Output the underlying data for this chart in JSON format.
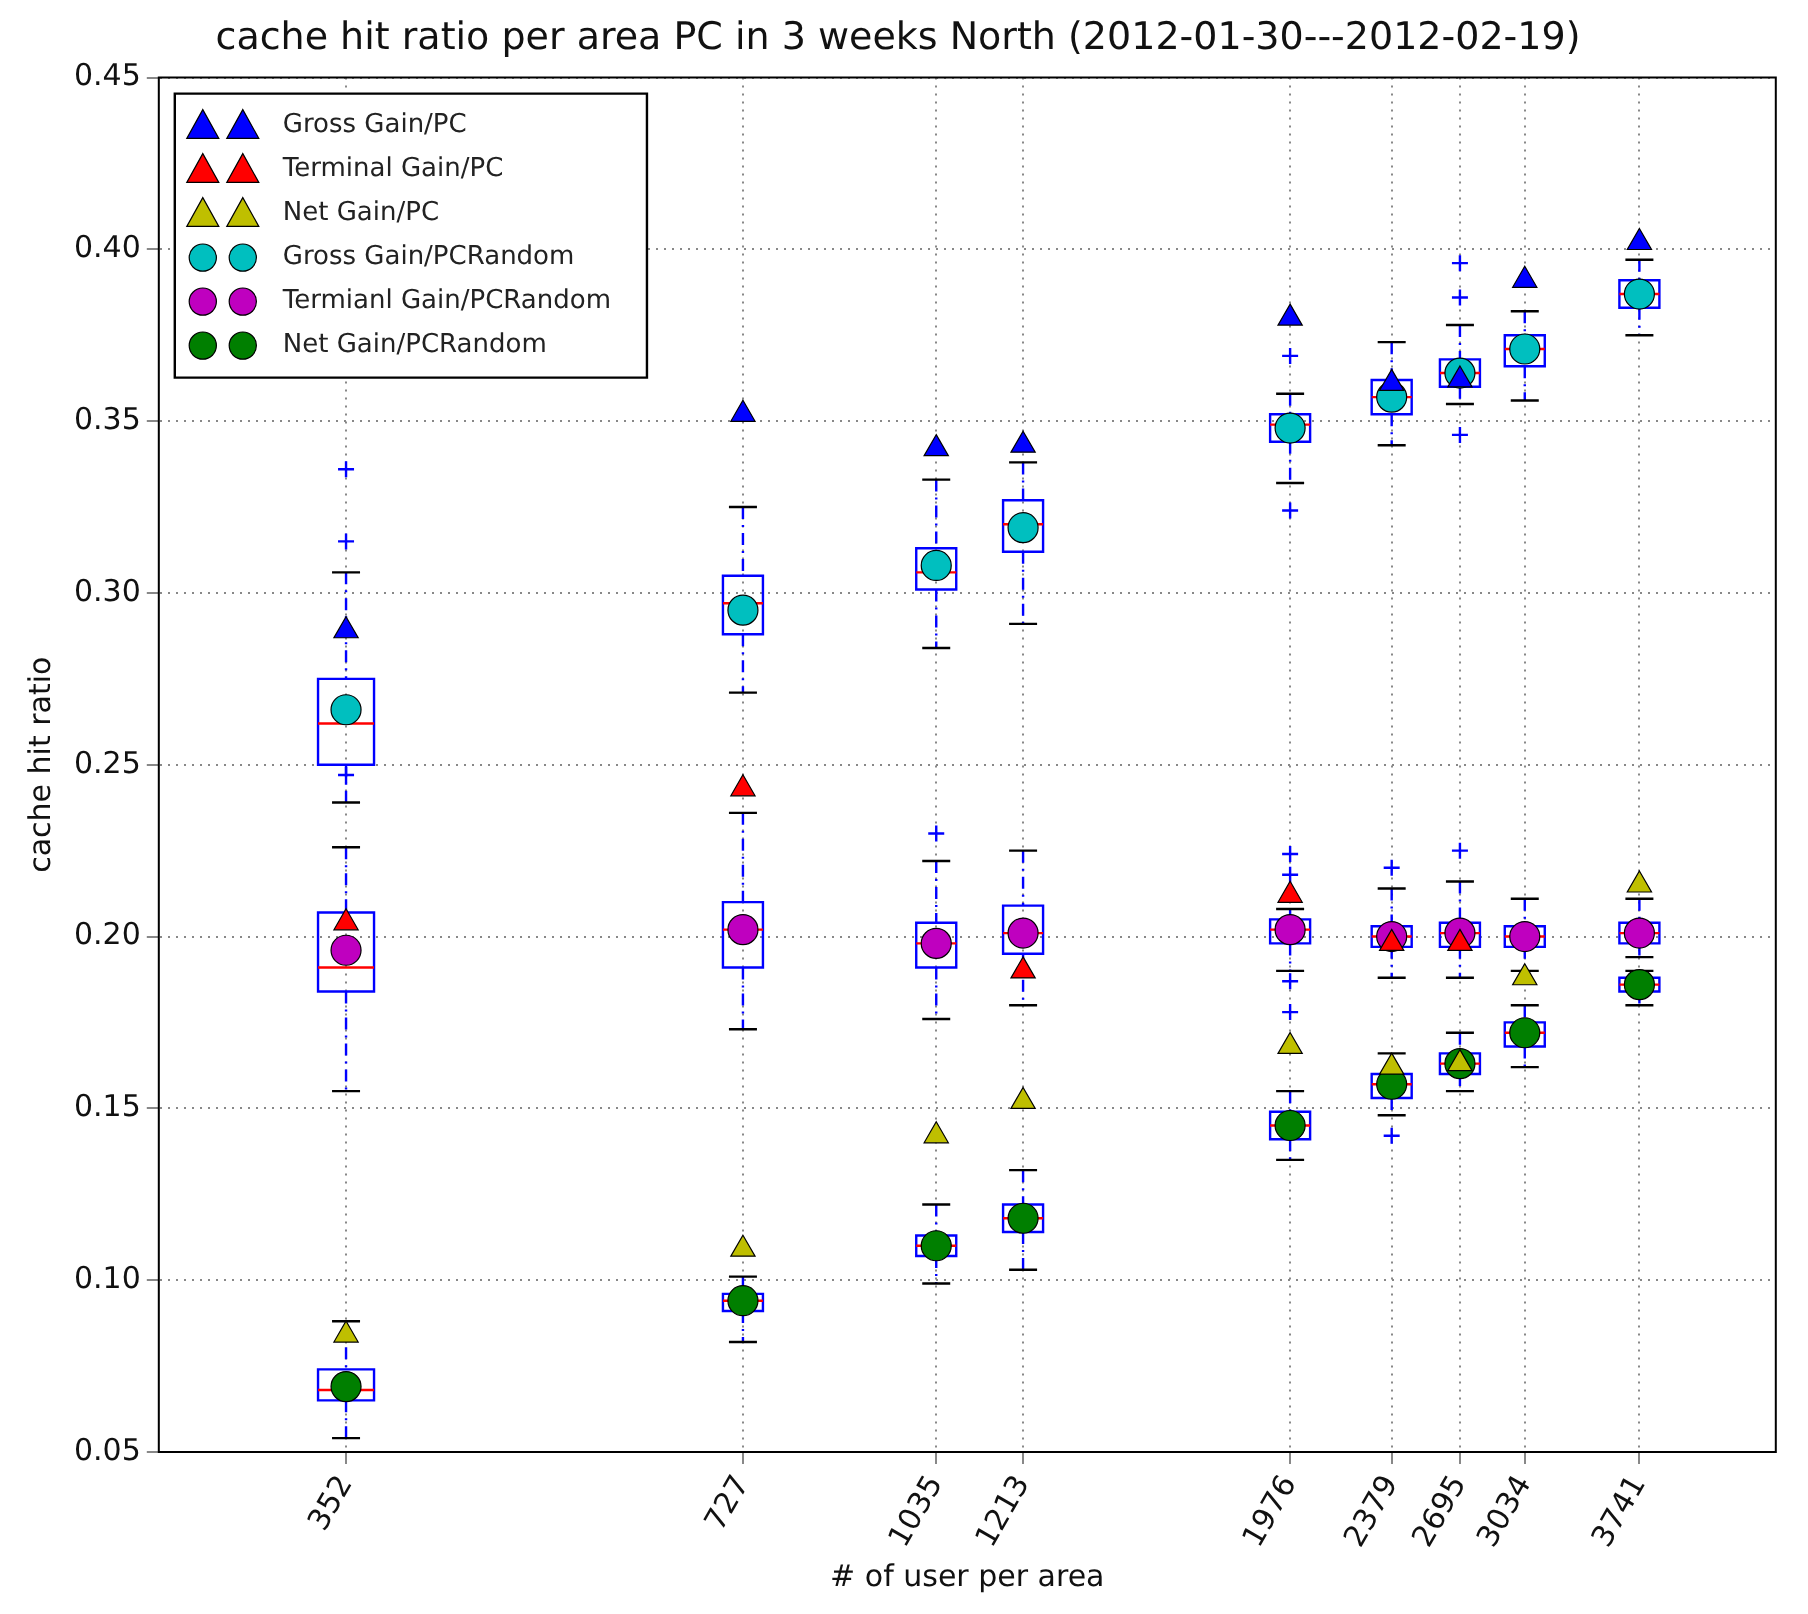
{
  "chart_data": {
    "type": "scatter",
    "title": "cache hit ratio per area PC in 3 weeks North (2012-01-30---2012-02-19)",
    "xlabel": "# of user per area",
    "ylabel": "cache hit ratio",
    "x": [
      352,
      727,
      1035,
      1213,
      1976,
      2379,
      2695,
      3034,
      3741
    ],
    "log": "x",
    "xlim": [
      250,
      4800
    ],
    "xticks": [
      352,
      727,
      1035,
      1213,
      1976,
      2379,
      2695,
      3034,
      3741
    ],
    "ylim": [
      0.05,
      0.45
    ],
    "yticks": [
      {
        "value": 0.05,
        "label": "0.05"
      },
      {
        "value": 0.1,
        "label": "0.10"
      },
      {
        "value": 0.15,
        "label": "0.15"
      },
      {
        "value": 0.2,
        "label": "0.20"
      },
      {
        "value": 0.25,
        "label": "0.25"
      },
      {
        "value": 0.3,
        "label": "0.30"
      },
      {
        "value": 0.35,
        "label": "0.35"
      },
      {
        "value": 0.4,
        "label": "0.40"
      },
      {
        "value": 0.45,
        "label": "0.45"
      }
    ],
    "grid": true,
    "legend": "top left",
    "series": [
      {
        "type": "box",
        "color": "#0000ff",
        "line_style": "dashed",
        "boxes": [
          {
            "low": 0.239,
            "q1": 0.25,
            "median": 0.262,
            "q3": 0.275,
            "high": 0.306,
            "outliers": [
              0.336,
              0.315
            ]
          },
          {
            "low": 0.271,
            "q1": 0.288,
            "median": 0.297,
            "q3": 0.305,
            "high": 0.325
          },
          {
            "low": 0.284,
            "q1": 0.301,
            "median": 0.306,
            "q3": 0.313,
            "high": 0.333
          },
          {
            "low": 0.291,
            "q1": 0.312,
            "median": 0.32,
            "q3": 0.327,
            "high": 0.338
          },
          {
            "low": 0.332,
            "q1": 0.344,
            "median": 0.349,
            "q3": 0.352,
            "high": 0.358,
            "outliers": [
              0.369,
              0.324
            ]
          },
          {
            "low": 0.343,
            "q1": 0.352,
            "median": 0.357,
            "q3": 0.362,
            "high": 0.373
          },
          {
            "low": 0.355,
            "q1": 0.36,
            "median": 0.364,
            "q3": 0.368,
            "high": 0.378,
            "outliers": [
              0.396,
              0.386,
              0.346
            ]
          },
          {
            "low": 0.356,
            "q1": 0.366,
            "median": 0.371,
            "q3": 0.375,
            "high": 0.382
          },
          {
            "low": 0.375,
            "q1": 0.383,
            "median": 0.387,
            "q3": 0.391,
            "high": 0.397
          }
        ]
      },
      {
        "type": "box",
        "color": "#0000ff",
        "line_style": "dashed",
        "boxes": [
          {
            "low": 0.155,
            "q1": 0.184,
            "median": 0.191,
            "q3": 0.207,
            "high": 0.226,
            "outliers": [
              0.247
            ]
          },
          {
            "low": 0.173,
            "q1": 0.191,
            "median": 0.202,
            "q3": 0.21,
            "high": 0.236
          },
          {
            "low": 0.176,
            "q1": 0.191,
            "median": 0.198,
            "q3": 0.204,
            "high": 0.222,
            "outliers": [
              0.23
            ]
          },
          {
            "low": 0.18,
            "q1": 0.195,
            "median": 0.201,
            "q3": 0.209,
            "high": 0.225
          },
          {
            "low": 0.19,
            "q1": 0.198,
            "median": 0.202,
            "q3": 0.205,
            "high": 0.208,
            "outliers": [
              0.224,
              0.218,
              0.187,
              0.178
            ]
          },
          {
            "low": 0.188,
            "q1": 0.197,
            "median": 0.2,
            "q3": 0.203,
            "high": 0.214,
            "outliers": [
              0.22
            ]
          },
          {
            "low": 0.188,
            "q1": 0.197,
            "median": 0.201,
            "q3": 0.204,
            "high": 0.216,
            "outliers": [
              0.225
            ]
          },
          {
            "low": 0.19,
            "q1": 0.197,
            "median": 0.2,
            "q3": 0.203,
            "high": 0.211
          },
          {
            "low": 0.194,
            "q1": 0.198,
            "median": 0.201,
            "q3": 0.204,
            "high": 0.211
          }
        ]
      },
      {
        "type": "box",
        "color": "#0000ff",
        "line_style": "dashed",
        "boxes": [
          {
            "low": 0.054,
            "q1": 0.065,
            "median": 0.068,
            "q3": 0.074,
            "high": 0.088
          },
          {
            "low": 0.082,
            "q1": 0.091,
            "median": 0.094,
            "q3": 0.096,
            "high": 0.101
          },
          {
            "low": 0.099,
            "q1": 0.107,
            "median": 0.11,
            "q3": 0.113,
            "high": 0.122
          },
          {
            "low": 0.103,
            "q1": 0.114,
            "median": 0.118,
            "q3": 0.122,
            "high": 0.132
          },
          {
            "low": 0.135,
            "q1": 0.141,
            "median": 0.145,
            "q3": 0.149,
            "high": 0.155
          },
          {
            "low": 0.148,
            "q1": 0.153,
            "median": 0.157,
            "q3": 0.16,
            "high": 0.166,
            "outliers": [
              0.142
            ]
          },
          {
            "low": 0.155,
            "q1": 0.16,
            "median": 0.163,
            "q3": 0.166,
            "high": 0.172
          },
          {
            "low": 0.162,
            "q1": 0.168,
            "median": 0.172,
            "q3": 0.175,
            "high": 0.18
          },
          {
            "low": 0.18,
            "q1": 0.184,
            "median": 0.186,
            "q3": 0.188,
            "high": 0.19
          }
        ]
      },
      {
        "name": "Gross Gain/PC",
        "color": "#0000ff",
        "marker": "triangle",
        "values": [
          0.289,
          0.352,
          0.342,
          0.343,
          0.38,
          0.361,
          0.362,
          0.391,
          0.402
        ]
      },
      {
        "name": "Terminal Gain/PC",
        "color": "#ff0000",
        "marker": "triangle",
        "values": [
          0.204,
          0.243,
          null,
          0.19,
          0.212,
          0.198,
          0.198,
          null,
          null
        ]
      },
      {
        "name": "Net Gain/PC",
        "color": "#bfbf00",
        "marker": "triangle",
        "values": [
          0.084,
          0.109,
          0.142,
          0.152,
          0.168,
          0.162,
          0.163,
          0.188,
          0.215
        ]
      },
      {
        "name": "Gross Gain/PCRandom",
        "color": "#00bfbf",
        "marker": "circle",
        "values": [
          0.266,
          0.295,
          0.308,
          0.319,
          0.348,
          0.357,
          0.364,
          0.371,
          0.387
        ]
      },
      {
        "name": "Termianl Gain/PCRandom",
        "color": "#bf00bf",
        "marker": "circle",
        "values": [
          0.196,
          0.202,
          0.198,
          0.201,
          0.202,
          0.2,
          0.201,
          0.2,
          0.201
        ]
      },
      {
        "name": "Net Gain/PCRandom",
        "color": "#007f00",
        "marker": "circle",
        "values": [
          0.069,
          0.094,
          0.11,
          0.118,
          0.145,
          0.157,
          0.163,
          0.172,
          0.186
        ]
      }
    ]
  }
}
